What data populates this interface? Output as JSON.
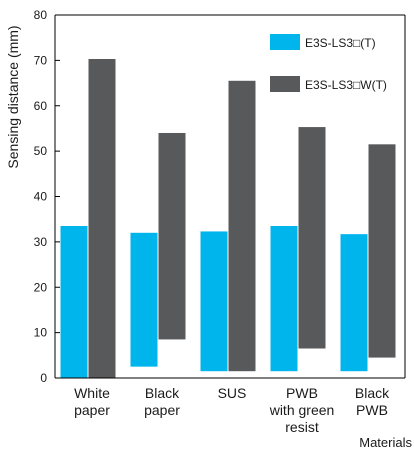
{
  "chart_data": {
    "type": "bar",
    "subtype": "floating-range-grouped",
    "ylabel": "Sensing distance (mm)",
    "xlabel": "Materials",
    "ylim": [
      0,
      80
    ],
    "yticks": [
      "0",
      "10",
      "20",
      "30",
      "40",
      "50",
      "60",
      "70",
      "80"
    ],
    "grid": false,
    "legend_position": "top-right",
    "categories": [
      {
        "lines": [
          "White",
          "paper"
        ]
      },
      {
        "lines": [
          "Black",
          "paper"
        ]
      },
      {
        "lines": [
          "SUS"
        ]
      },
      {
        "lines": [
          "PWB",
          "with green",
          "resist"
        ]
      },
      {
        "lines": [
          "Black",
          "PWB"
        ]
      }
    ],
    "series": [
      {
        "name": "E3S-LS3□(T)",
        "color": "#00b4ec",
        "ranges": [
          [
            0,
            33.5
          ],
          [
            2.5,
            32
          ],
          [
            1.5,
            32.3
          ],
          [
            1.5,
            33.5
          ],
          [
            1.5,
            31.7
          ]
        ]
      },
      {
        "name": "E3S-LS3□W(T)",
        "color": "#58595b",
        "ranges": [
          [
            0,
            70.3
          ],
          [
            8.5,
            54
          ],
          [
            1.5,
            65.5
          ],
          [
            6.5,
            55.3
          ],
          [
            4.5,
            51.5
          ]
        ]
      }
    ]
  }
}
